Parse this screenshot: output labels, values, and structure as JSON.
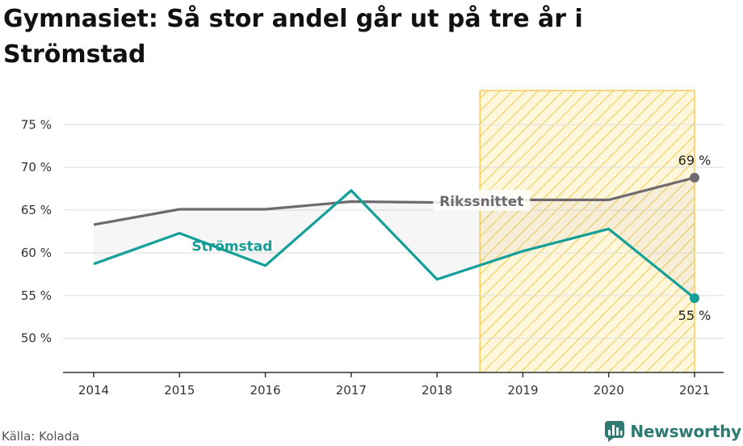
{
  "title": "Gymnasiet: Så stor andel går ut på tre år i Strömstad",
  "source": "Källa: Kolada",
  "brand": "Newsworthy",
  "colors": {
    "stromstad": "#14a098",
    "riket": "#6e6a6f",
    "highlight_fill": "#fff3c9",
    "highlight_stroke": "#f3cc5c",
    "grid": "#dddddd",
    "axis": "#333333",
    "brand": "#2f7a73"
  },
  "chart_data": {
    "type": "line",
    "x": [
      "2014",
      "2015",
      "2016",
      "2017",
      "2018",
      "2019",
      "2020",
      "2021"
    ],
    "ylim": [
      46,
      79
    ],
    "yticks": [
      50,
      55,
      60,
      65,
      70,
      75
    ],
    "ytick_labels": [
      "50 %",
      "55 %",
      "60 %",
      "65 %",
      "70 %",
      "75 %"
    ],
    "grid": true,
    "highlight_range": [
      "2018.5",
      "2021"
    ],
    "series": [
      {
        "name": "Rikssnittet",
        "color": "#6e6a6f",
        "values": [
          63.3,
          65.1,
          65.1,
          66.0,
          65.9,
          66.2,
          66.2,
          68.8
        ],
        "end_label": "69 %"
      },
      {
        "name": "Strömstad",
        "color": "#14a098",
        "values": [
          58.7,
          62.3,
          58.5,
          67.3,
          56.9,
          60.2,
          62.8,
          54.7
        ],
        "end_label": "55 %"
      }
    ]
  }
}
